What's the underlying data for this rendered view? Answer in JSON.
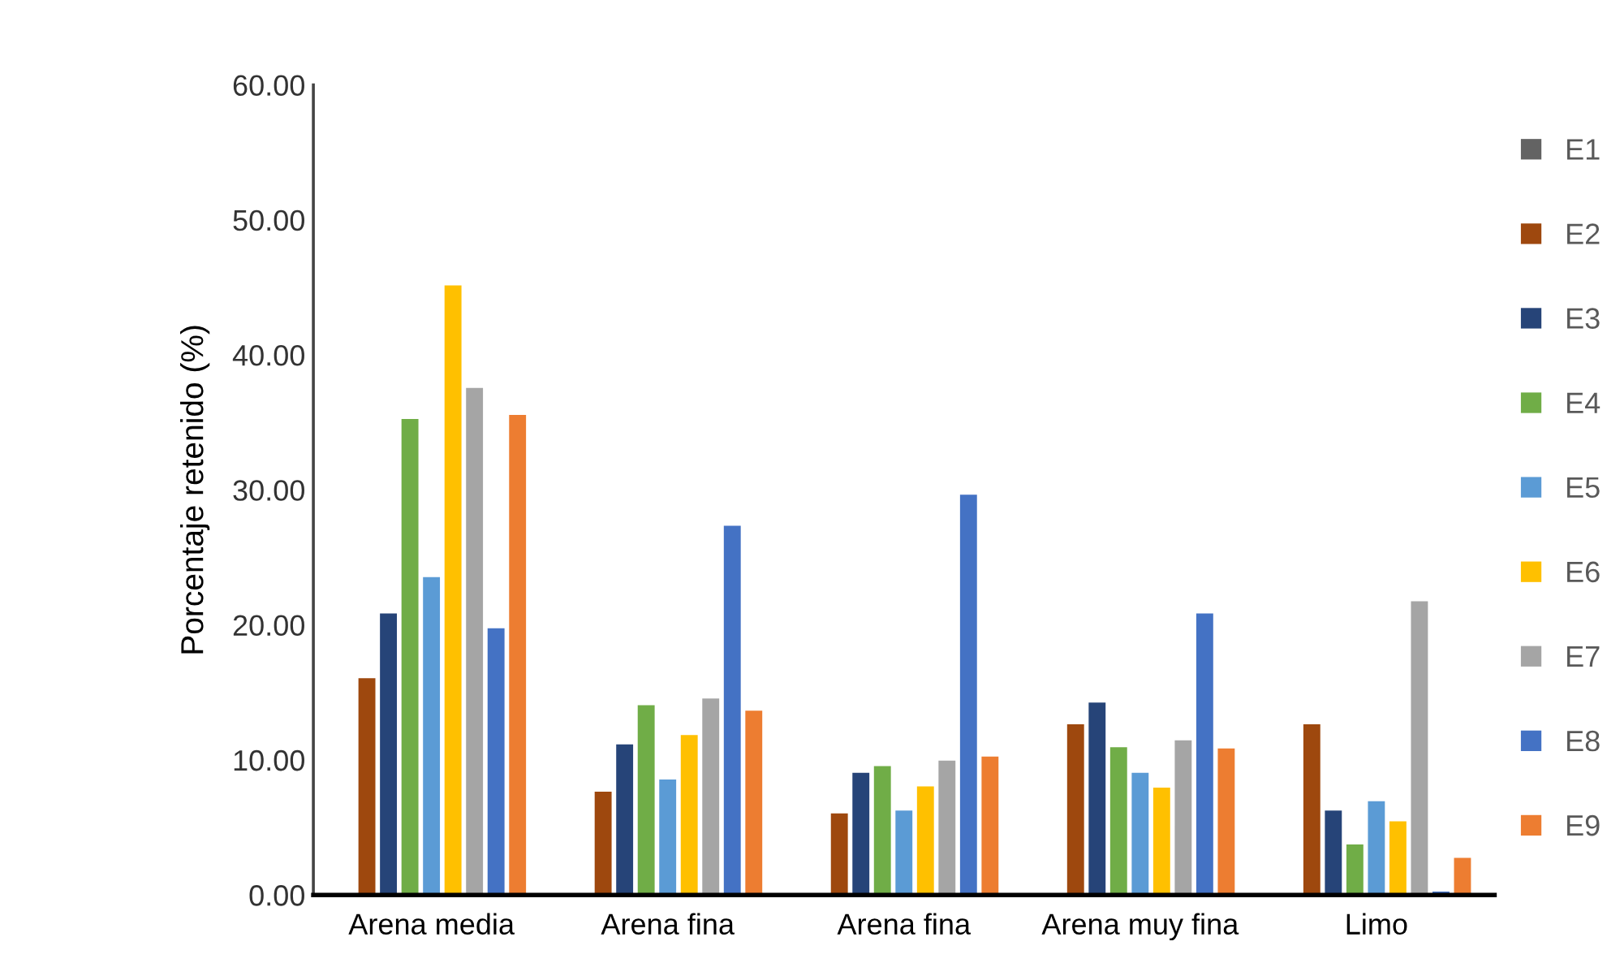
{
  "chart_data": {
    "type": "bar",
    "ylabel": "Porcentaje retenido (%)",
    "categories": [
      "Arena media",
      "Arena fina",
      "Arena fina",
      "Arena muy fina",
      "Limo"
    ],
    "series": [
      {
        "name": "E1",
        "color": "#636363",
        "values": [
          null,
          null,
          null,
          null,
          null
        ]
      },
      {
        "name": "E2",
        "color": "#9e480e",
        "values": [
          16.1,
          7.7,
          6.1,
          12.7,
          12.7
        ]
      },
      {
        "name": "E3",
        "color": "#264478",
        "values": [
          20.9,
          11.2,
          9.1,
          14.3,
          6.3
        ]
      },
      {
        "name": "E4",
        "color": "#70ad47",
        "values": [
          35.3,
          14.1,
          9.6,
          11.0,
          3.8
        ]
      },
      {
        "name": "E5",
        "color": "#5b9bd5",
        "values": [
          23.6,
          8.6,
          6.3,
          9.1,
          7.0
        ]
      },
      {
        "name": "E6",
        "color": "#ffc000",
        "values": [
          45.2,
          11.9,
          8.1,
          8.0,
          5.5
        ]
      },
      {
        "name": "E7",
        "color": "#a5a5a5",
        "values": [
          37.6,
          14.6,
          10.0,
          11.5,
          21.8
        ]
      },
      {
        "name": "E8",
        "color": "#4472c4",
        "values": [
          19.8,
          27.4,
          29.7,
          20.9,
          0.3
        ]
      },
      {
        "name": "E9",
        "color": "#ed7d31",
        "values": [
          35.6,
          13.7,
          10.3,
          10.9,
          2.8
        ]
      }
    ],
    "ylim": [
      0,
      60
    ],
    "yticks": [
      {
        "value": 0,
        "label": "0.00"
      },
      {
        "value": 10,
        "label": "10.00"
      },
      {
        "value": 20,
        "label": "20.00"
      },
      {
        "value": 30,
        "label": "30.00"
      },
      {
        "value": 40,
        "label": "40.00"
      },
      {
        "value": 50,
        "label": "50.00"
      },
      {
        "value": 60,
        "label": "60.00"
      }
    ],
    "grid": false,
    "legend": "right"
  }
}
